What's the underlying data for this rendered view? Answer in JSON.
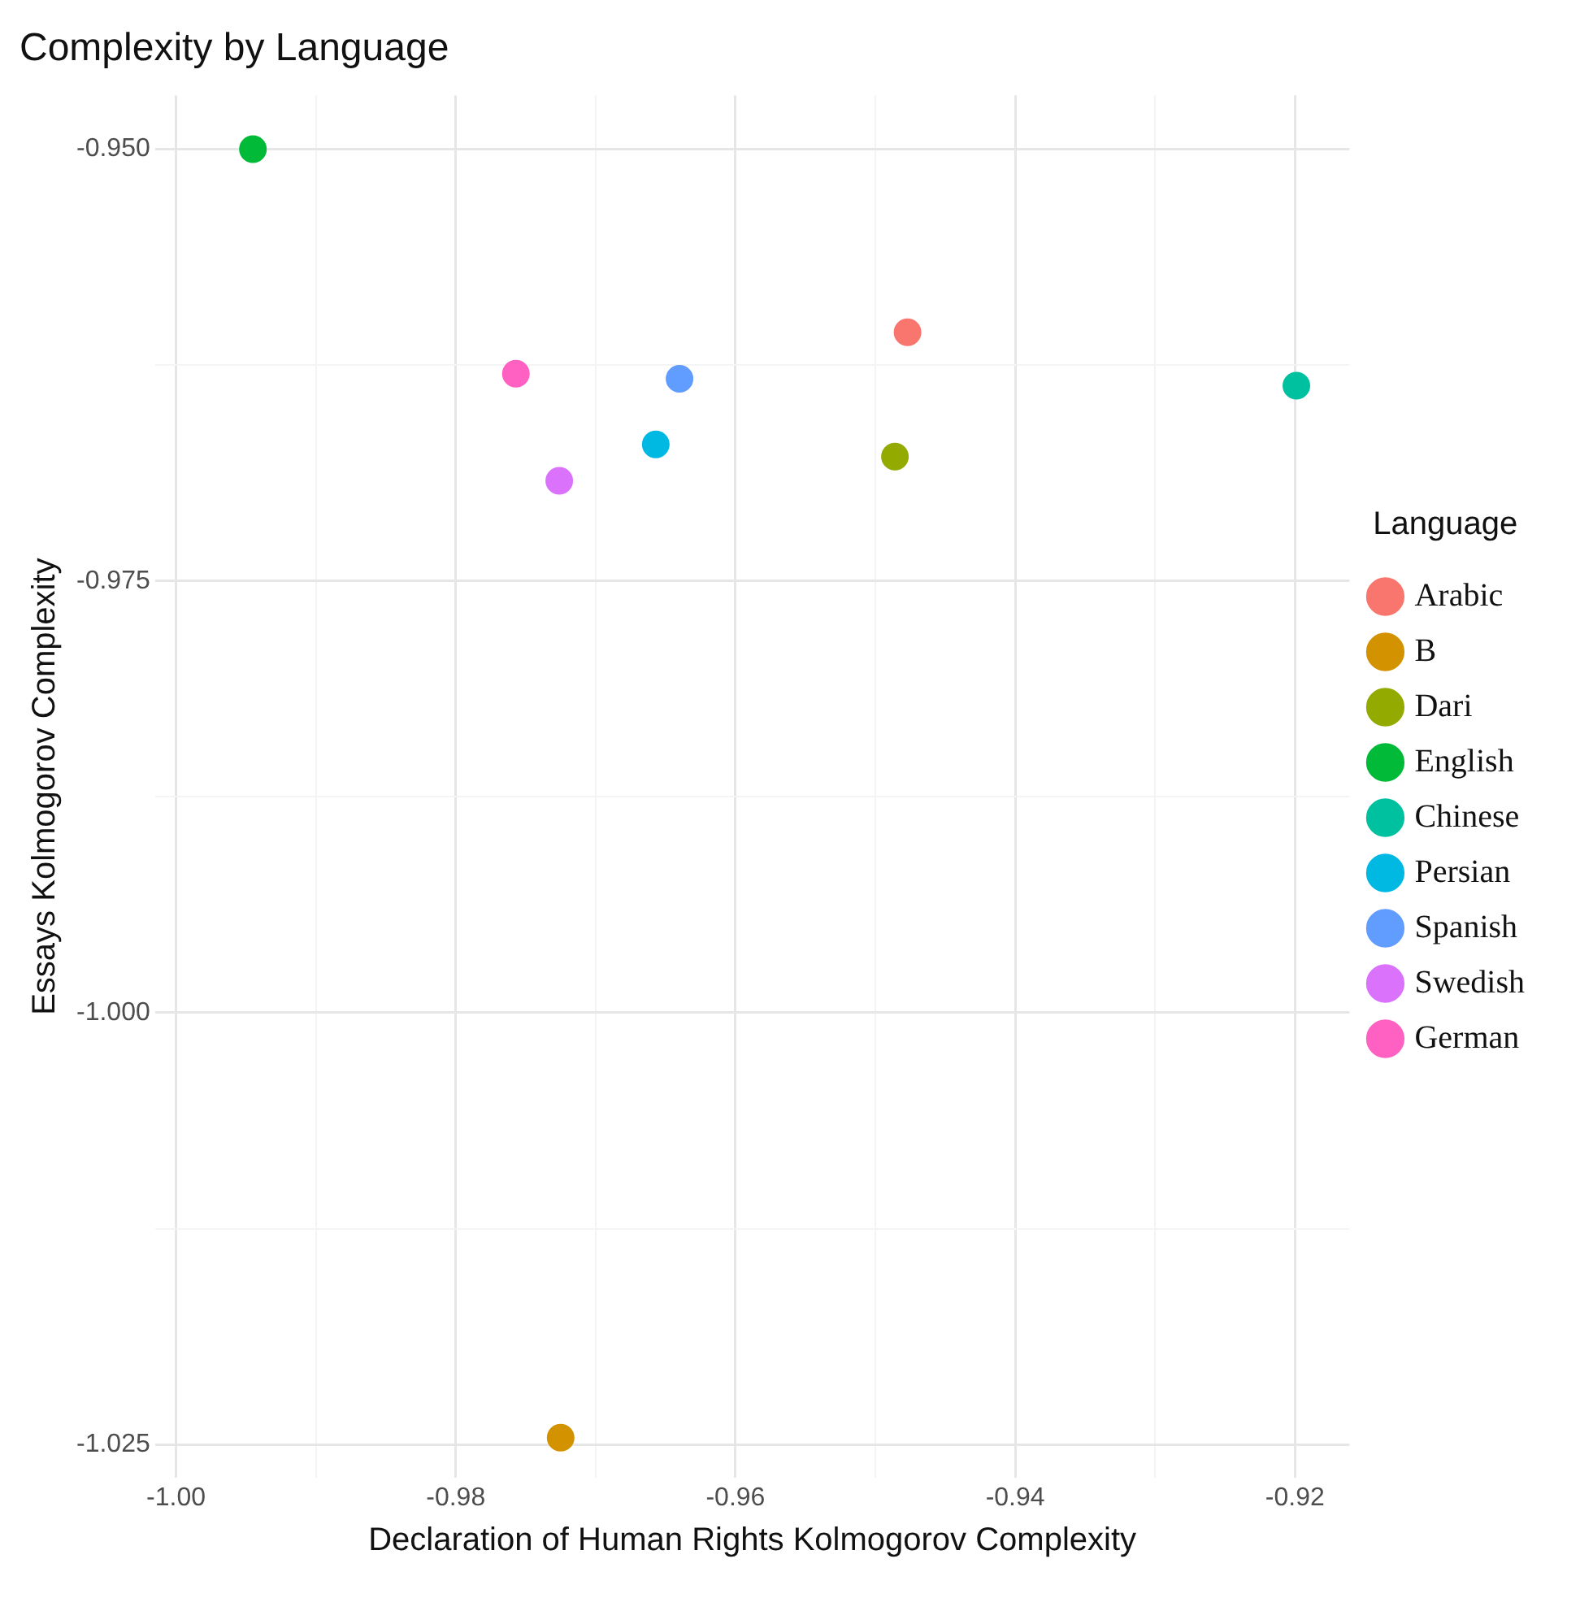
{
  "chart_data": {
    "type": "scatter",
    "title": "Complexity by Language",
    "xlabel": "Declaration of Human Rights Kolmogorov Complexity",
    "ylabel": "Essays Kolmogorov Complexity",
    "legend_title": "Language",
    "legend": "right",
    "grid": true,
    "marker": "circle",
    "xlim": [
      -1.0015,
      -0.9161
    ],
    "xticks": [
      {
        "value": -1.0,
        "label": "-1.00"
      },
      {
        "value": -0.99,
        "label": null
      },
      {
        "value": -0.98,
        "label": "-0.98"
      },
      {
        "value": -0.97,
        "label": null
      },
      {
        "value": -0.96,
        "label": "-0.96"
      },
      {
        "value": -0.95,
        "label": null
      },
      {
        "value": -0.94,
        "label": "-0.94"
      },
      {
        "value": -0.93,
        "label": null
      },
      {
        "value": -0.92,
        "label": "-0.92"
      }
    ],
    "ylim": [
      -1.0269,
      -0.9469
    ],
    "yticks": [
      {
        "value": -1.025,
        "label": "-1.025"
      },
      {
        "value": -1.0125,
        "label": null
      },
      {
        "value": -1.0,
        "label": "-1.000"
      },
      {
        "value": -0.9875,
        "label": null
      },
      {
        "value": -0.975,
        "label": "-0.975"
      },
      {
        "value": -0.9625,
        "label": null
      },
      {
        "value": -0.95,
        "label": "-0.950"
      }
    ],
    "series": [
      {
        "name": "Arabic",
        "color": "#f8766d",
        "x": [
          -0.9477
        ],
        "values": [
          -0.9606
        ]
      },
      {
        "name": "B",
        "color": "#d39200",
        "x": [
          -0.9725
        ],
        "values": [
          -1.0246
        ]
      },
      {
        "name": "Dari",
        "color": "#93aa00",
        "x": [
          -0.9486
        ],
        "values": [
          -0.9678
        ]
      },
      {
        "name": "English",
        "color": "#00ba38",
        "x": [
          -0.9945
        ],
        "values": [
          -0.95
        ]
      },
      {
        "name": "Chinese",
        "color": "#00c19f",
        "x": [
          -0.9199
        ],
        "values": [
          -0.9637
        ]
      },
      {
        "name": "Persian",
        "color": "#00b9e3",
        "x": [
          -0.9657
        ],
        "values": [
          -0.9671
        ]
      },
      {
        "name": "Spanish",
        "color": "#619cff",
        "x": [
          -0.964
        ],
        "values": [
          -0.9633
        ]
      },
      {
        "name": "Swedish",
        "color": "#db72fb",
        "x": [
          -0.9726
        ],
        "values": [
          -0.9692
        ]
      },
      {
        "name": "German",
        "color": "#ff61c3",
        "x": [
          -0.9757
        ],
        "values": [
          -0.963
        ]
      }
    ]
  }
}
